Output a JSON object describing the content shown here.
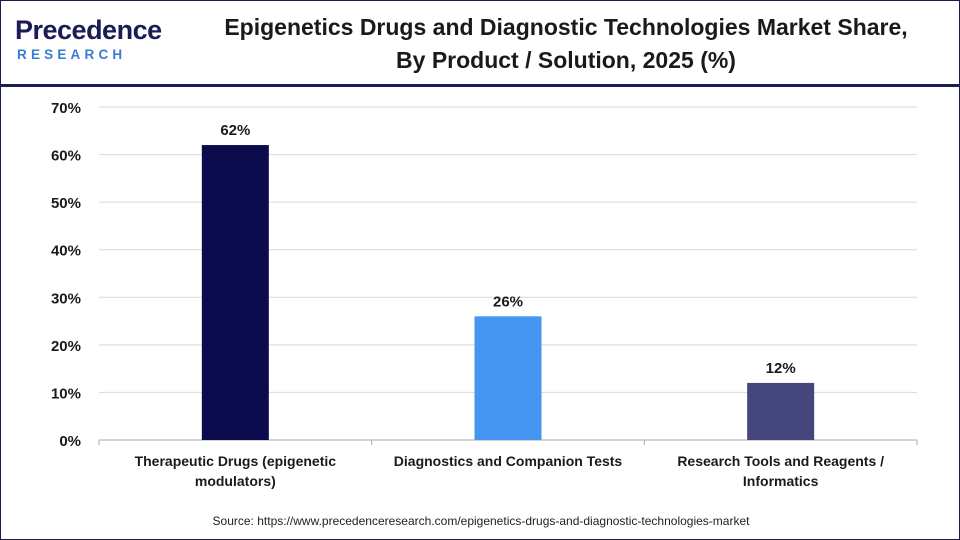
{
  "brand": {
    "logo_word": "Precedence",
    "logo_sub": "RESEARCH"
  },
  "header": {
    "title_line1": "Epigenetics Drugs and Diagnostic Technologies Market Share,",
    "title_line2": "By Product / Solution, 2025 (%)"
  },
  "colors": {
    "header_rule": "#1b1b55",
    "grid": "#d9d9d9",
    "axis": "#aaaaaa"
  },
  "chart_data": {
    "type": "bar",
    "title": "Epigenetics Drugs and Diagnostic Technologies Market Share, By Product / Solution, 2025 (%)",
    "categories": [
      [
        "Therapeutic Drugs (epigenetic",
        "modulators)"
      ],
      [
        "Diagnostics and Companion Tests"
      ],
      [
        "Research Tools and Reagents /",
        "Informatics"
      ]
    ],
    "values": [
      62,
      26,
      12
    ],
    "value_labels": [
      "62%",
      "26%",
      "12%"
    ],
    "bar_colors": [
      "#0b0b4d",
      "#4496f0",
      "#46467f"
    ],
    "y_ticks": [
      0,
      10,
      20,
      30,
      40,
      50,
      60,
      70
    ],
    "y_tick_labels": [
      "0%",
      "10%",
      "20%",
      "30%",
      "40%",
      "50%",
      "60%",
      "70%"
    ],
    "ylim": [
      0,
      70
    ],
    "grid": true,
    "xlabel": "",
    "ylabel": ""
  },
  "footer": {
    "source": "Source: https://www.precedenceresearch.com/epigenetics-drugs-and-diagnostic-technologies-market"
  }
}
